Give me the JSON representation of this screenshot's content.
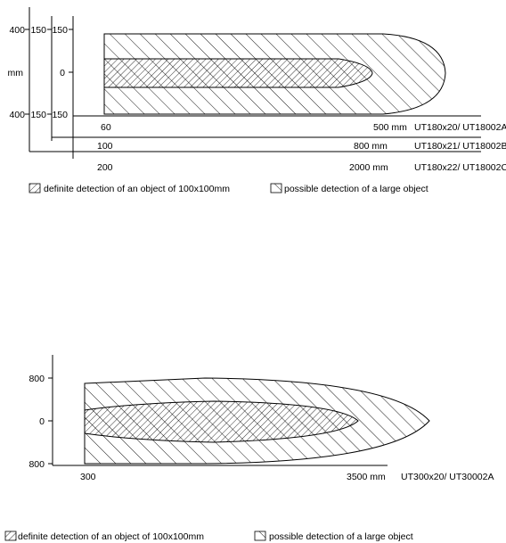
{
  "top_diagram": {
    "y_axes": {
      "outer": {
        "top": "400",
        "bottom": "400",
        "unit": "mm"
      },
      "middle": {
        "top": "150",
        "bottom": "150"
      },
      "inner": {
        "top": "150",
        "center": "0",
        "bottom": "150"
      }
    },
    "ranges": [
      {
        "start": "60",
        "end": "500 mm",
        "model": "UT180x20/ UT18002A"
      },
      {
        "start": "100",
        "end": "800 mm",
        "model": "UT180x21/ UT18002B"
      },
      {
        "start": "200",
        "end": "2000 mm",
        "model": "UT180x22/ UT18002C"
      }
    ],
    "legend": {
      "definite": "definite detection of an object of 100x100mm",
      "possible": "possible detection of a large object"
    }
  },
  "bottom_diagram": {
    "y_axis": {
      "top": "800",
      "center": "0",
      "bottom": "800"
    },
    "range": {
      "start": "300",
      "end": "3500 mm",
      "model": "UT300x20/ UT30002A"
    },
    "legend": {
      "definite": "definite detection of an object of 100x100mm",
      "possible": "possible detection of a large object"
    }
  },
  "colors": {
    "line": "#000000",
    "background": "#ffffff"
  }
}
